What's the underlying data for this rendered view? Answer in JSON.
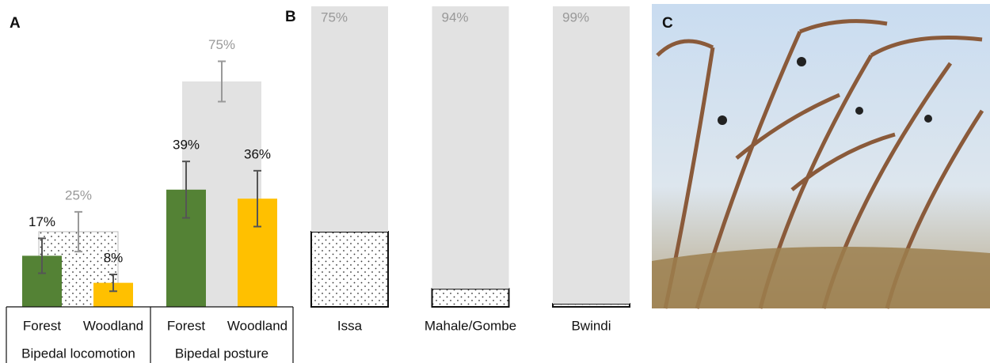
{
  "chart_data": [
    {
      "type": "bar",
      "panel": "A",
      "ylim": [
        0,
        100
      ],
      "categories": [
        "Bipedal locomotion",
        "Bipedal posture"
      ],
      "background": {
        "color": "#e2e2e2",
        "label_color": "#999999",
        "patterns": [
          "dots",
          "solid"
        ],
        "values": [
          25,
          75
        ],
        "errors": [
          6.6,
          6.7
        ],
        "value_labels": [
          "25%",
          "75%"
        ]
      },
      "series": [
        {
          "name": "Forest",
          "color": "#548235",
          "values": [
            17,
            39
          ],
          "errors": [
            5.8,
            9.4
          ],
          "value_labels": [
            "17%",
            "39%"
          ]
        },
        {
          "name": "Woodland",
          "color": "#ffc000",
          "values": [
            8,
            36
          ],
          "errors": [
            2.8,
            9.3
          ],
          "value_labels": [
            "8%",
            "36%"
          ]
        }
      ]
    },
    {
      "type": "stacked_bar",
      "panel": "B",
      "ylim": [
        0,
        100
      ],
      "categories": [
        "Issa",
        "Mahale/Gombe",
        "Bwindi"
      ],
      "series": [
        {
          "pattern": "dots",
          "color": "#ffffff",
          "label_color": "#111111",
          "values": [
            25,
            6,
            1
          ],
          "value_labels": [
            "25%",
            "6%",
            "1%"
          ]
        },
        {
          "pattern": "solid",
          "color": "#e2e2e2",
          "label_color": "#999999",
          "values": [
            75,
            94,
            99
          ],
          "value_labels": [
            "75%",
            "94%",
            "99%"
          ]
        }
      ]
    },
    {
      "type": "image",
      "panel": "C"
    }
  ]
}
